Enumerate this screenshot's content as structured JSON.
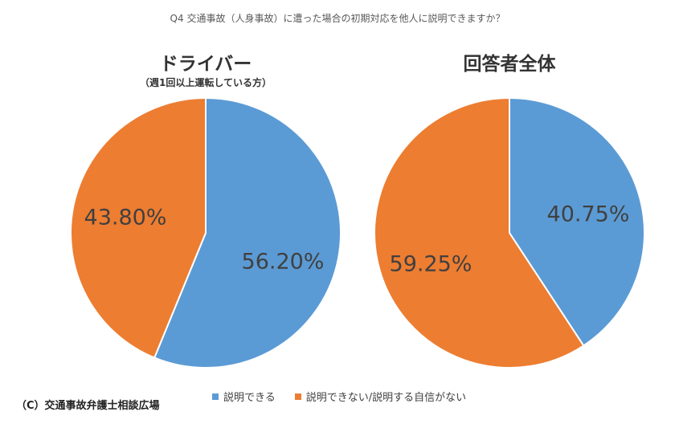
{
  "title": "Q4 交通事故（人身事故）に遭った場合の初期対応を他人に説明できますか？",
  "copyright": "（C）交通事故弁護士相談広場",
  "colors": {
    "yes": "#5B9BD5",
    "no": "#ED7D31"
  },
  "chart_data": [
    {
      "type": "pie",
      "title": "ドライバー",
      "subtitle": "（週1回以上運転している方）",
      "labels": [
        "説明できる",
        "説明できない/説明する自信がない"
      ],
      "values": [
        56.2,
        43.8
      ],
      "value_labels": [
        "56.20%",
        "43.80%"
      ]
    },
    {
      "type": "pie",
      "title": "回答者全体",
      "subtitle": "",
      "labels": [
        "説明できる",
        "説明できない/説明する自信がない"
      ],
      "values": [
        40.75,
        59.25
      ],
      "value_labels": [
        "40.75%",
        "59.25%"
      ]
    }
  ],
  "legend": [
    "説明できる",
    "説明できない/説明する自信がない"
  ]
}
